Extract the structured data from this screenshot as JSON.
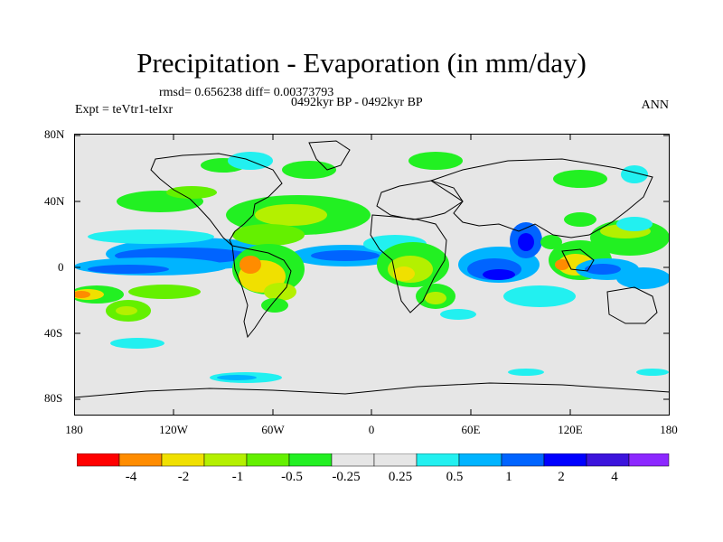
{
  "title": "Precipitation - Evaporation (in mm/day)",
  "stats": "rmsd= 0.656238 diff= 0.00373793",
  "period": "0492kyr BP - 0492kyr BP",
  "experiment": "Expt = teVtr1-teIxr",
  "season": "ANN",
  "lat_ticks": [
    "80N",
    "40N",
    "0",
    "40S",
    "80S"
  ],
  "lon_ticks": [
    "180",
    "120W",
    "60W",
    "0",
    "60E",
    "120E",
    "180"
  ],
  "colorbar": {
    "colors": [
      "#ff0000",
      "#ff8c00",
      "#f0e000",
      "#b4f000",
      "#64f000",
      "#22f022",
      "#e6e6e6",
      "#e6e6e6",
      "#22f0f0",
      "#00b4ff",
      "#0064ff",
      "#0000ff",
      "#3c14dc",
      "#8c28ff"
    ],
    "labels": [
      "-4",
      "-2",
      "-1",
      "-0.5",
      "-0.25",
      "0.25",
      "0.5",
      "1",
      "2",
      "4"
    ]
  },
  "map_background": "#e6e6e6"
}
